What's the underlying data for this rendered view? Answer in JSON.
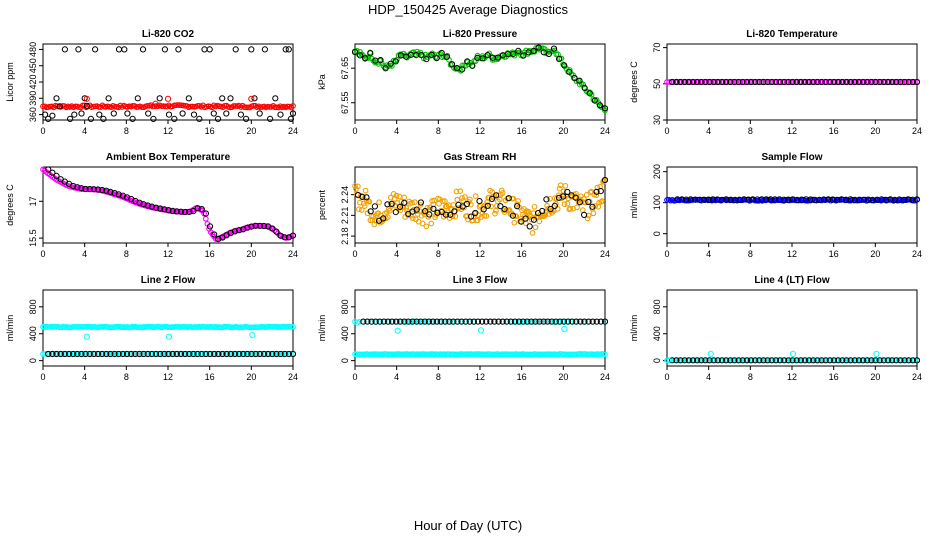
{
  "page": {
    "title": "HDP_150425  Average Diagnostics",
    "x_axis_label": "Hour of Day (UTC)"
  },
  "chart_data": [
    {
      "title": "Li-820 CO2",
      "type": "scatter",
      "ylabel": "Licor ppm",
      "xlim": [
        0,
        24
      ],
      "ylim": [
        350,
        490
      ],
      "xticks": [
        0,
        4,
        8,
        12,
        16,
        20,
        24
      ],
      "yticks": [
        360,
        390,
        420,
        450,
        480
      ],
      "series": [
        {
          "name": "co2_red",
          "color": "#ff0000",
          "style": "dense",
          "x0": 0,
          "x1": 24,
          "n": 140,
          "y": [
            375,
            375,
            375,
            376,
            375,
            375,
            375
          ],
          "jitter": 2
        },
        {
          "name": "co2_black",
          "color": "#000000",
          "points": [
            [
              0.2,
              360
            ],
            [
              0.5,
              352
            ],
            [
              0.9,
              358
            ],
            [
              1.3,
              390
            ],
            [
              1.6,
              375
            ],
            [
              2.1,
              480
            ],
            [
              2.6,
              352
            ],
            [
              3.0,
              360
            ],
            [
              3.4,
              480
            ],
            [
              3.7,
              362
            ],
            [
              4.0,
              390
            ],
            [
              4.2,
              376
            ],
            [
              4.6,
              352
            ],
            [
              5.0,
              480
            ],
            [
              5.4,
              360
            ],
            [
              5.8,
              352
            ],
            [
              6.3,
              390
            ],
            [
              6.8,
              362
            ],
            [
              7.3,
              480
            ],
            [
              7.8,
              480
            ],
            [
              8.1,
              362
            ],
            [
              8.6,
              352
            ],
            [
              9.1,
              390
            ],
            [
              9.6,
              480
            ],
            [
              10.1,
              362
            ],
            [
              10.6,
              352
            ],
            [
              11.2,
              390
            ],
            [
              11.7,
              480
            ],
            [
              12.1,
              360
            ],
            [
              12.6,
              352
            ],
            [
              13.0,
              480
            ],
            [
              13.4,
              362
            ],
            [
              14.0,
              390
            ],
            [
              14.5,
              360
            ],
            [
              15.0,
              352
            ],
            [
              15.5,
              480
            ],
            [
              16.0,
              480
            ],
            [
              16.4,
              362
            ],
            [
              16.8,
              352
            ],
            [
              17.2,
              390
            ],
            [
              17.6,
              362
            ],
            [
              18.0,
              390
            ],
            [
              18.5,
              480
            ],
            [
              19.0,
              360
            ],
            [
              19.5,
              352
            ],
            [
              20.0,
              480
            ],
            [
              20.3,
              390
            ],
            [
              20.8,
              362
            ],
            [
              21.3,
              480
            ],
            [
              21.8,
              352
            ],
            [
              22.3,
              390
            ],
            [
              22.8,
              360
            ],
            [
              23.3,
              480
            ],
            [
              23.6,
              480
            ],
            [
              23.8,
              352
            ],
            [
              24.0,
              362
            ]
          ]
        },
        {
          "name": "co2_red_high",
          "color": "#ff0000",
          "points": [
            [
              4.2,
              389
            ],
            [
              10.8,
              380
            ],
            [
              12.0,
              389
            ],
            [
              20.0,
              389
            ]
          ]
        }
      ]
    },
    {
      "title": "Li-820 Pressure",
      "type": "scatter",
      "ylabel": "kPa",
      "xlim": [
        0,
        24
      ],
      "ylim": [
        67.5,
        67.72
      ],
      "xticks": [
        0,
        4,
        8,
        12,
        16,
        20,
        24
      ],
      "yticks": [
        67.55,
        67.65
      ],
      "series": [
        {
          "name": "pressure_green",
          "color": "#00c000",
          "style": "dense",
          "x0": 0,
          "x1": 24,
          "n": 150,
          "jitter": 0.008,
          "y": [
            67.7,
            67.69,
            67.68,
            67.69,
            67.67,
            67.67,
            67.65,
            67.66,
            67.67,
            67.69,
            67.68,
            67.69,
            67.69,
            67.69,
            67.68,
            67.69,
            67.68,
            67.69,
            67.68,
            67.66,
            67.65,
            67.65,
            67.67,
            67.66,
            67.68,
            67.68,
            67.69,
            67.68,
            67.68,
            67.69,
            67.69,
            67.69,
            67.7,
            67.69,
            67.7,
            67.7,
            67.71,
            67.7,
            67.69,
            67.71,
            67.68,
            67.66,
            67.64,
            67.62,
            67.61,
            67.59,
            67.58,
            67.56,
            67.54,
            67.53
          ]
        },
        {
          "name": "pressure_black",
          "color": "#000000",
          "x0": 0,
          "x1": 24,
          "n": 50,
          "jitter": 0.004,
          "y": [
            67.7,
            67.69,
            67.68,
            67.69,
            67.67,
            67.67,
            67.65,
            67.66,
            67.67,
            67.69,
            67.68,
            67.69,
            67.69,
            67.69,
            67.68,
            67.69,
            67.68,
            67.69,
            67.68,
            67.66,
            67.65,
            67.65,
            67.67,
            67.66,
            67.68,
            67.68,
            67.69,
            67.68,
            67.68,
            67.69,
            67.69,
            67.69,
            67.7,
            67.69,
            67.7,
            67.7,
            67.71,
            67.7,
            67.69,
            67.71,
            67.68,
            67.66,
            67.64,
            67.62,
            67.61,
            67.59,
            67.58,
            67.56,
            67.54,
            67.53
          ]
        }
      ]
    },
    {
      "title": "Li-820 Temperature",
      "type": "scatter",
      "ylabel": "degrees C",
      "xlim": [
        0,
        24
      ],
      "ylim": [
        30,
        72
      ],
      "xticks": [
        0,
        4,
        8,
        12,
        16,
        20,
        24
      ],
      "yticks": [
        30,
        50,
        70
      ],
      "series": [
        {
          "name": "temp_magenta",
          "color": "#ff00ff",
          "style": "dense",
          "x0": 0,
          "x1": 24,
          "n": 120,
          "y": [
            51,
            51
          ],
          "jitter": 0
        },
        {
          "name": "temp_black",
          "color": "#000000",
          "x0": 0.5,
          "x1": 24,
          "n": 60,
          "y": [
            51,
            51
          ],
          "jitter": 0
        }
      ]
    },
    {
      "title": "Ambient Box Temperature",
      "type": "scatter",
      "ylabel": "degrees C",
      "xlim": [
        0,
        24
      ],
      "ylim": [
        15.3,
        18.4
      ],
      "xticks": [
        0,
        4,
        8,
        12,
        16,
        20,
        24
      ],
      "yticks": [
        15.5,
        17.0
      ],
      "series": [
        {
          "name": "ambient_magenta",
          "color": "#ff00ff",
          "style": "dense",
          "x0": 0,
          "x1": 24,
          "n": 150,
          "jitter": 0,
          "y": [
            18.3,
            18.1,
            17.9,
            17.75,
            17.62,
            17.55,
            17.5,
            17.5,
            17.48,
            17.45,
            17.38,
            17.3,
            17.22,
            17.12,
            17.0,
            16.9,
            16.82,
            16.75,
            16.7,
            16.65,
            16.6,
            16.58,
            16.56,
            16.58,
            16.75,
            16.6,
            15.8,
            15.45,
            15.55,
            15.7,
            15.8,
            15.85,
            15.95,
            16.0,
            16.0,
            15.98,
            15.85,
            15.6,
            15.5,
            15.6
          ]
        },
        {
          "name": "ambient_black",
          "color": "#000000",
          "x0": 0.5,
          "x1": 24,
          "n": 60,
          "jitter": 0,
          "y": [
            18.3,
            18.1,
            17.9,
            17.75,
            17.62,
            17.55,
            17.5,
            17.5,
            17.48,
            17.45,
            17.38,
            17.3,
            17.22,
            17.12,
            17.0,
            16.9,
            16.82,
            16.75,
            16.7,
            16.65,
            16.6,
            16.58,
            16.56,
            16.58,
            16.75,
            16.6,
            15.8,
            15.45,
            15.55,
            15.7,
            15.8,
            15.85,
            15.95,
            16.0,
            16.0,
            15.98,
            15.85,
            15.6,
            15.5,
            15.6
          ]
        }
      ]
    },
    {
      "title": "Gas Stream RH",
      "type": "scatter",
      "ylabel": "percent",
      "xlim": [
        0,
        24
      ],
      "ylim": [
        2.17,
        2.28
      ],
      "xticks": [
        0,
        4,
        8,
        12,
        16,
        20,
        24
      ],
      "yticks": [
        2.18,
        2.21,
        2.24
      ],
      "series": [
        {
          "name": "rh_orange",
          "color": "#f0a000",
          "style": "dense",
          "x0": 0,
          "x1": 24,
          "n": 260,
          "jitter": 0.018,
          "y": [
            2.24,
            2.23,
            2.21,
            2.22,
            2.23,
            2.22,
            2.22,
            2.21,
            2.22,
            2.22,
            2.23,
            2.22,
            2.22,
            2.23,
            2.23,
            2.22,
            2.21,
            2.2,
            2.22,
            2.23,
            2.24,
            2.23,
            2.22,
            2.23,
            2.25
          ]
        },
        {
          "name": "rh_black",
          "color": "#000000",
          "x0": 0.3,
          "x1": 24,
          "n": 60,
          "jitter": 0.012,
          "y": [
            2.24,
            2.23,
            2.21,
            2.22,
            2.23,
            2.22,
            2.22,
            2.21,
            2.22,
            2.22,
            2.23,
            2.22,
            2.22,
            2.23,
            2.23,
            2.22,
            2.21,
            2.2,
            2.22,
            2.23,
            2.24,
            2.23,
            2.22,
            2.23,
            2.25
          ]
        }
      ]
    },
    {
      "title": "Sample Flow",
      "type": "scatter",
      "ylabel": "ml/min",
      "xlim": [
        0,
        24
      ],
      "ylim": [
        -30,
        215
      ],
      "xticks": [
        0,
        4,
        8,
        12,
        16,
        20,
        24
      ],
      "yticks": [
        0,
        100,
        200
      ],
      "series": [
        {
          "name": "sample_blue",
          "color": "#0000ff",
          "style": "dense",
          "x0": 0,
          "x1": 24,
          "n": 140,
          "y": [
            108,
            108
          ],
          "jitter": 2
        },
        {
          "name": "sample_black",
          "color": "#000000",
          "x0": 1.0,
          "x1": 24,
          "n": 55,
          "y": [
            110,
            110
          ],
          "jitter": 1
        }
      ]
    },
    {
      "title": "Line 2 Flow",
      "type": "scatter",
      "ylabel": "ml/min",
      "xlim": [
        0,
        24
      ],
      "ylim": [
        -80,
        1050
      ],
      "xticks": [
        0,
        4,
        8,
        12,
        16,
        20,
        24
      ],
      "yticks": [
        0,
        400,
        800
      ],
      "series": [
        {
          "name": "line2_cyan_high",
          "color": "#00ffff",
          "style": "dense",
          "x0": 0,
          "x1": 24,
          "n": 150,
          "y": [
            500,
            500
          ],
          "jitter": 6
        },
        {
          "name": "line2_cyan_low",
          "color": "#00ffff",
          "style": "dense",
          "x0": 0,
          "x1": 24,
          "n": 120,
          "y": [
            100,
            100
          ],
          "jitter": 0
        },
        {
          "name": "line2_black",
          "color": "#000000",
          "x0": 0.5,
          "x1": 24,
          "n": 60,
          "y": [
            98,
            98
          ],
          "jitter": 0
        },
        {
          "name": "line2_cyan_outliers",
          "color": "#00ffff",
          "points": [
            [
              4.2,
              355
            ],
            [
              12.1,
              355
            ],
            [
              20.1,
              380
            ]
          ]
        }
      ]
    },
    {
      "title": "Line 3 Flow",
      "type": "scatter",
      "ylabel": "ml/min",
      "xlim": [
        0,
        24
      ],
      "ylim": [
        -80,
        1050
      ],
      "xticks": [
        0,
        4,
        8,
        12,
        16,
        20,
        24
      ],
      "yticks": [
        0,
        400,
        800
      ],
      "series": [
        {
          "name": "line3_cyan_low",
          "color": "#00ffff",
          "style": "dense",
          "x0": 0,
          "x1": 24,
          "n": 150,
          "y": [
            95,
            95
          ],
          "jitter": 4
        },
        {
          "name": "line3_cyan_high",
          "color": "#00ffff",
          "style": "dense",
          "x0": 0,
          "x1": 24,
          "n": 60,
          "y": [
            578,
            578
          ],
          "jitter": 4
        },
        {
          "name": "line3_black",
          "color": "#000000",
          "x0": 0.8,
          "x1": 24,
          "n": 60,
          "y": [
            580,
            580
          ],
          "jitter": 0
        },
        {
          "name": "line3_cyan_outliers",
          "color": "#00ffff",
          "points": [
            [
              0.2,
              565
            ],
            [
              4.1,
              445
            ],
            [
              12.1,
              450
            ],
            [
              20.1,
              470
            ]
          ]
        }
      ]
    },
    {
      "title": "Line 4 (LT) Flow",
      "type": "scatter",
      "ylabel": "ml/min",
      "xlim": [
        0,
        24
      ],
      "ylim": [
        -80,
        1050
      ],
      "xticks": [
        0,
        4,
        8,
        12,
        16,
        20,
        24
      ],
      "yticks": [
        0,
        400,
        800
      ],
      "series": [
        {
          "name": "line4_cyan",
          "color": "#00ffff",
          "style": "dense",
          "x0": 0,
          "x1": 24,
          "n": 100,
          "y": [
            5,
            5
          ],
          "jitter": 0
        },
        {
          "name": "line4_black",
          "color": "#000000",
          "x0": 0.5,
          "x1": 24,
          "n": 60,
          "y": [
            5,
            5
          ],
          "jitter": 0
        },
        {
          "name": "line4_cyan_outliers",
          "color": "#00ffff",
          "points": [
            [
              0.1,
              5
            ],
            [
              4.2,
              100
            ],
            [
              12.1,
              100
            ],
            [
              20.1,
              100
            ]
          ]
        }
      ]
    }
  ]
}
